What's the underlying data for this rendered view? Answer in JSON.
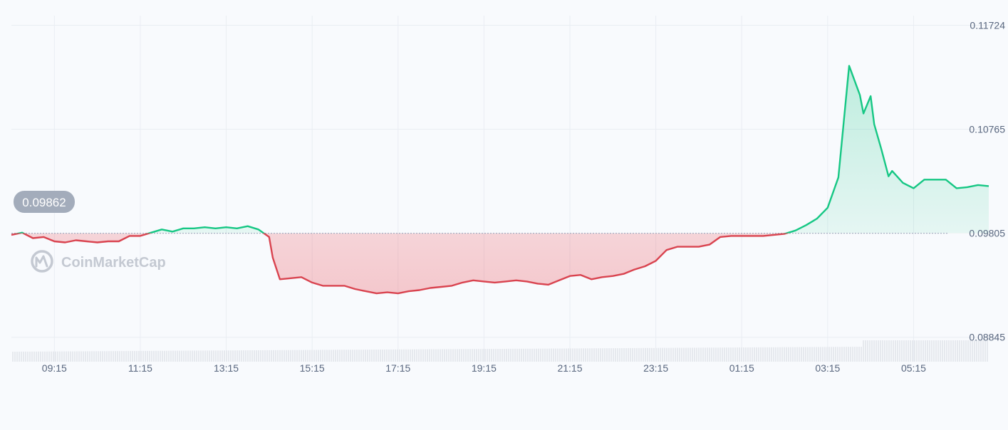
{
  "chart_data": {
    "type": "area",
    "title": "",
    "xlabel": "",
    "ylabel": "",
    "x_tick_labels": [
      "09:15",
      "11:15",
      "13:15",
      "15:15",
      "17:15",
      "19:15",
      "21:15",
      "23:15",
      "01:15",
      "03:15",
      "05:15"
    ],
    "y_tick_labels": [
      "0.11724",
      "0.10765",
      "0.09805",
      "0.08845"
    ],
    "ylim": [
      0.0862,
      0.1176
    ],
    "grid": true,
    "reference_price": "0.09862",
    "reference_value": 0.09805,
    "colors": {
      "above": "#16c784",
      "below": "#d9434f",
      "badge": "#a3acbb"
    },
    "watermark": "CoinMarketCap",
    "series": [
      {
        "x": [
          "08:15",
          "08:30",
          "08:45",
          "09:00",
          "09:15",
          "09:30",
          "09:45",
          "10:00",
          "10:15",
          "10:30",
          "10:45",
          "11:00",
          "11:15",
          "11:30",
          "11:45",
          "12:00",
          "12:15",
          "12:30",
          "12:45",
          "13:00",
          "13:15",
          "13:30",
          "13:45",
          "14:00",
          "14:15",
          "14:20",
          "14:30",
          "14:45",
          "15:00",
          "15:15",
          "15:30",
          "15:45",
          "16:00",
          "16:15",
          "16:30",
          "16:45",
          "17:00",
          "17:15",
          "17:30",
          "17:45",
          "18:00",
          "18:15",
          "18:30",
          "18:45",
          "19:00",
          "19:15",
          "19:30",
          "19:45",
          "20:00",
          "20:15",
          "20:30",
          "20:45",
          "21:00",
          "21:15",
          "21:30",
          "21:45",
          "22:00",
          "22:15",
          "22:30",
          "22:45",
          "23:00",
          "23:15",
          "23:30",
          "23:45",
          "00:00",
          "00:15",
          "00:30",
          "00:45",
          "01:00",
          "01:15",
          "01:30",
          "01:45",
          "02:00",
          "02:15",
          "02:30",
          "02:45",
          "03:00",
          "03:15",
          "03:30",
          "03:45",
          "04:00",
          "04:05",
          "04:15",
          "04:20",
          "04:30",
          "04:40",
          "04:45",
          "05:00",
          "05:15",
          "05:30",
          "05:45",
          "06:00",
          "06:15",
          "06:30",
          "06:45",
          "07:00"
        ],
        "values": [
          0.0979,
          0.0981,
          0.0976,
          0.0977,
          0.0973,
          0.0972,
          0.0974,
          0.0973,
          0.0972,
          0.0973,
          0.0973,
          0.0978,
          0.0978,
          0.0981,
          0.0984,
          0.0982,
          0.0985,
          0.0985,
          0.0986,
          0.0985,
          0.0986,
          0.0985,
          0.0987,
          0.0984,
          0.0977,
          0.0958,
          0.0938,
          0.0939,
          0.094,
          0.0935,
          0.0932,
          0.0932,
          0.0932,
          0.0929,
          0.0927,
          0.0925,
          0.0926,
          0.0925,
          0.0927,
          0.0928,
          0.093,
          0.0931,
          0.0932,
          0.0935,
          0.0937,
          0.0936,
          0.0935,
          0.0936,
          0.0937,
          0.0936,
          0.0934,
          0.0933,
          0.0937,
          0.0941,
          0.0942,
          0.0938,
          0.094,
          0.0941,
          0.0943,
          0.0947,
          0.095,
          0.0955,
          0.0965,
          0.0968,
          0.0968,
          0.0968,
          0.097,
          0.0977,
          0.0978,
          0.0978,
          0.0978,
          0.0978,
          0.0979,
          0.098,
          0.0983,
          0.0988,
          0.0994,
          0.1004,
          0.1032,
          0.1135,
          0.1108,
          0.1091,
          0.1107,
          0.1081,
          0.1058,
          0.1033,
          0.1038,
          0.1027,
          0.1022,
          0.103,
          0.103,
          0.103,
          0.1022,
          0.1023,
          0.1025,
          0.1024
        ]
      }
    ]
  }
}
